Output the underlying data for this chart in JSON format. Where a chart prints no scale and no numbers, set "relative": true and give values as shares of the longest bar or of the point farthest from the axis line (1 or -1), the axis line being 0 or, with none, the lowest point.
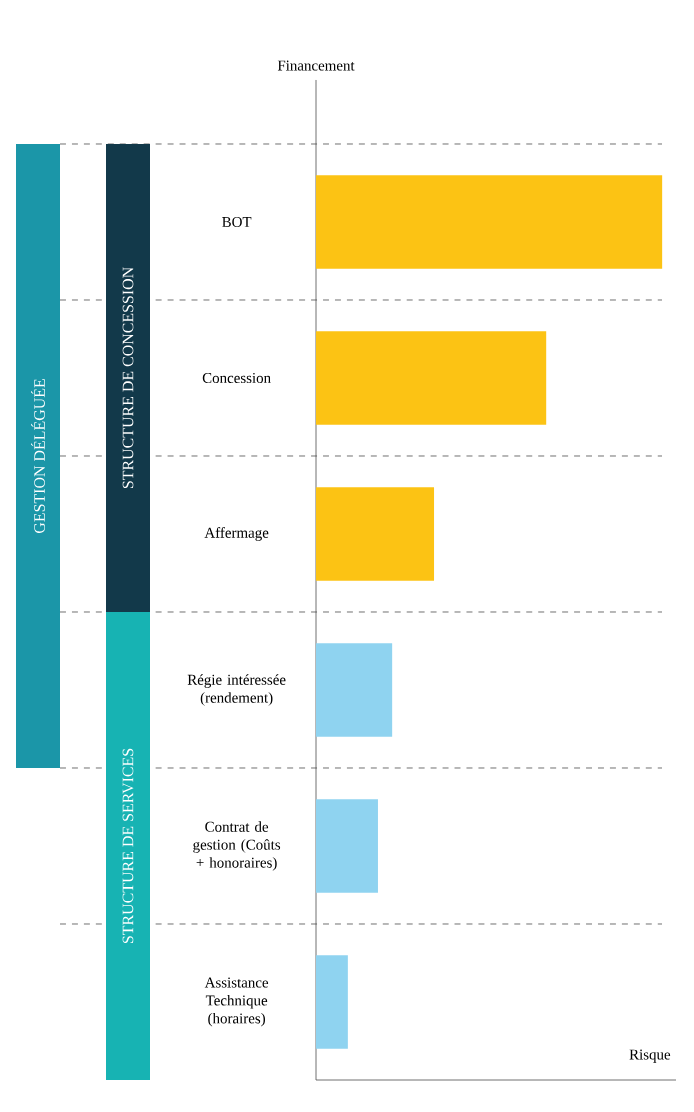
{
  "chart_data": {
    "type": "bar",
    "orientation": "horizontal",
    "relative": true,
    "xlabel": "Risque",
    "ylabel": "Financement",
    "categories": [
      "BOT",
      "Concession",
      "Affermage",
      "Régie intéressée (rendement)",
      "Contrat de gestion (Coûts + honoraires)",
      "Assistance Technique (horaires)"
    ],
    "values": [
      1,
      0.665,
      0.341,
      0.22,
      0.179,
      0.092
    ],
    "colors": [
      "#fcc314",
      "#fcc314",
      "#fcc314",
      "#8fd3f0",
      "#8fd3f0",
      "#8fd3f0"
    ],
    "annotations": [
      "GESTION DÉLÉGUÉE",
      "STRUCTURE DE CONCESSION",
      "STRUCTURE DE SERVICES"
    ]
  }
}
